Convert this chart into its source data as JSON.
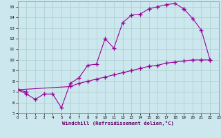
{
  "xlabel": "Windchill (Refroidissement éolien,°C)",
  "background_color": "#cce8ee",
  "line_color": "#990099",
  "grid_color": "#aacccc",
  "xlim": [
    0,
    23
  ],
  "ylim": [
    5,
    15.5
  ],
  "xticks": [
    0,
    1,
    2,
    3,
    4,
    5,
    6,
    7,
    8,
    9,
    10,
    11,
    12,
    13,
    14,
    15,
    16,
    17,
    18,
    19,
    20,
    21,
    22,
    23
  ],
  "yticks": [
    5,
    6,
    7,
    8,
    9,
    10,
    11,
    12,
    13,
    14,
    15
  ],
  "line1_x": [
    0,
    1,
    2,
    3,
    4,
    5,
    6,
    7,
    8,
    9,
    10,
    11,
    12,
    13,
    14,
    15,
    16,
    17,
    18,
    19
  ],
  "line1_y": [
    7.2,
    6.8,
    6.3,
    6.8,
    6.8,
    5.5,
    7.8,
    8.3,
    9.5,
    9.6,
    12.0,
    11.1,
    13.5,
    14.2,
    14.3,
    14.8,
    15.0,
    15.2,
    15.3,
    14.8
  ],
  "line2_x": [
    0,
    1,
    19,
    20,
    21,
    22
  ],
  "line2_y": [
    7.2,
    7.0,
    14.8,
    13.9,
    12.8,
    10.0
  ],
  "line3_x": [
    0,
    6,
    7,
    8,
    9,
    10,
    11,
    12,
    13,
    14,
    15,
    16,
    17,
    18,
    19,
    20,
    21,
    22
  ],
  "line3_y": [
    7.2,
    7.5,
    7.8,
    8.0,
    8.2,
    8.4,
    8.6,
    8.8,
    9.0,
    9.2,
    9.4,
    9.5,
    9.7,
    9.8,
    9.9,
    10.0,
    10.0,
    10.0
  ]
}
